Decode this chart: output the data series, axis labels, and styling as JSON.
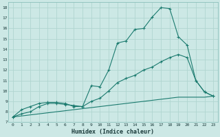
{
  "xlabel": "Humidex (Indice chaleur)",
  "bg_color": "#cce8e5",
  "grid_color": "#b0d5d0",
  "line_color": "#1a7a6e",
  "xlim": [
    -0.5,
    23.5
  ],
  "ylim": [
    7,
    18.5
  ],
  "xticks": [
    0,
    1,
    2,
    3,
    4,
    5,
    6,
    7,
    8,
    9,
    10,
    11,
    12,
    13,
    14,
    15,
    16,
    17,
    18,
    19,
    20,
    21,
    22,
    23
  ],
  "yticks": [
    7,
    8,
    9,
    10,
    11,
    12,
    13,
    14,
    15,
    16,
    17,
    18
  ],
  "curve1_x": [
    0,
    1,
    2,
    3,
    4,
    5,
    6,
    7,
    8,
    9,
    10,
    11,
    12,
    13,
    14,
    15,
    16,
    17,
    18,
    19,
    20,
    21,
    22,
    23
  ],
  "curve1_y": [
    7.5,
    8.2,
    8.5,
    8.8,
    8.9,
    8.9,
    8.8,
    8.5,
    8.5,
    10.5,
    10.4,
    12.0,
    14.6,
    14.8,
    15.9,
    16.0,
    17.1,
    18.0,
    17.9,
    15.2,
    14.4,
    11.0,
    9.9,
    9.5
  ],
  "curve2_x": [
    0,
    1,
    2,
    3,
    4,
    5,
    6,
    7,
    8,
    9,
    10,
    11,
    12,
    13,
    14,
    15,
    16,
    17,
    18,
    19,
    20,
    21,
    22,
    23
  ],
  "curve2_y": [
    7.5,
    7.8,
    8.0,
    8.5,
    8.8,
    8.8,
    8.7,
    8.6,
    8.5,
    9.0,
    9.3,
    10.0,
    10.8,
    11.2,
    11.5,
    12.0,
    12.3,
    12.8,
    13.2,
    13.5,
    13.2,
    11.0,
    9.9,
    9.5
  ],
  "curve3_x": [
    0,
    1,
    2,
    3,
    4,
    5,
    6,
    7,
    8,
    9,
    10,
    11,
    12,
    13,
    14,
    15,
    16,
    17,
    18,
    19,
    20,
    21,
    22,
    23
  ],
  "curve3_y": [
    7.5,
    7.6,
    7.7,
    7.8,
    7.9,
    8.0,
    8.1,
    8.2,
    8.3,
    8.4,
    8.5,
    8.6,
    8.7,
    8.8,
    8.9,
    9.0,
    9.1,
    9.2,
    9.3,
    9.4,
    9.4,
    9.4,
    9.4,
    9.5
  ]
}
